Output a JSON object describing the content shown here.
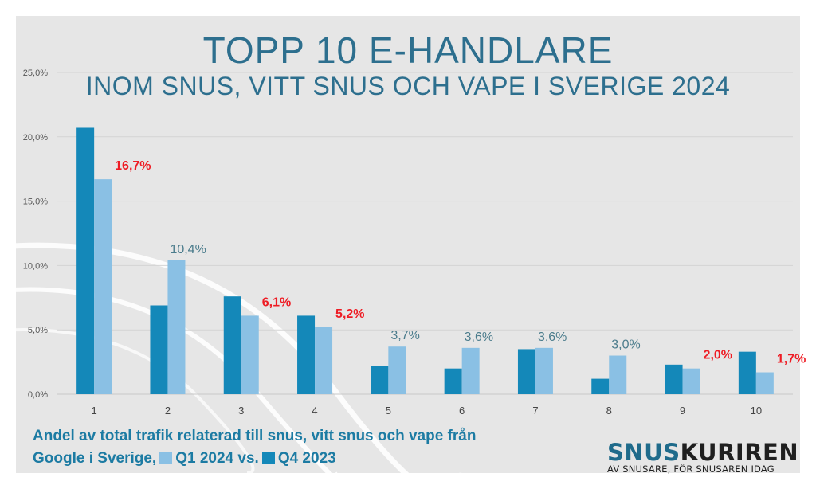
{
  "colors": {
    "q4_2023": "#1488b9",
    "q1_2024": "#8ac0e4",
    "highlight_label": "#ee1c24",
    "normal_label": "#4b7c8c",
    "title": "#2d6f8e",
    "footer": "#1c7ba3"
  },
  "footer": {
    "line1": "Andel av total trafik relaterad till snus, vitt snus och vape från",
    "line2_prefix": "Google i Sverige,",
    "legend_q1": "Q1 2024 vs.",
    "legend_q4": "Q4 2023"
  },
  "brand": {
    "name_part1": "SNUS",
    "name_part2": "KURIREN",
    "tagline": "AV SNUSARE, FÖR SNUSAREN IDAG"
  },
  "chart_data": {
    "type": "bar",
    "title": "TOPP 10 E-HANDLARE",
    "subtitle": "INOM SNUS, VITT SNUS OCH VAPE I SVERIGE 2024",
    "categories": [
      "1",
      "2",
      "3",
      "4",
      "5",
      "6",
      "7",
      "8",
      "9",
      "10"
    ],
    "series": [
      {
        "name": "Q4 2023",
        "values": [
          20.7,
          6.9,
          7.6,
          6.1,
          2.2,
          2.0,
          3.5,
          1.2,
          2.3,
          3.3
        ]
      },
      {
        "name": "Q1 2024",
        "values": [
          16.7,
          10.4,
          6.1,
          5.2,
          3.7,
          3.6,
          3.6,
          3.0,
          2.0,
          1.7
        ]
      }
    ],
    "data_labels": [
      "16,7%",
      "10,4%",
      "6,1%",
      "5,2%",
      "3,7%",
      "3,6%",
      "3,6%",
      "3,0%",
      "2,0%",
      "1,7%"
    ],
    "label_highlight": [
      true,
      false,
      true,
      true,
      false,
      false,
      false,
      false,
      true,
      true
    ],
    "ylim": [
      0,
      25
    ],
    "yticks": [
      0,
      5,
      10,
      15,
      20,
      25
    ],
    "ytick_labels": [
      "0,0%",
      "5,0%",
      "10,0%",
      "15,0%",
      "20,0%",
      "25,0%"
    ],
    "grid": true,
    "legend": "bottom-left"
  }
}
